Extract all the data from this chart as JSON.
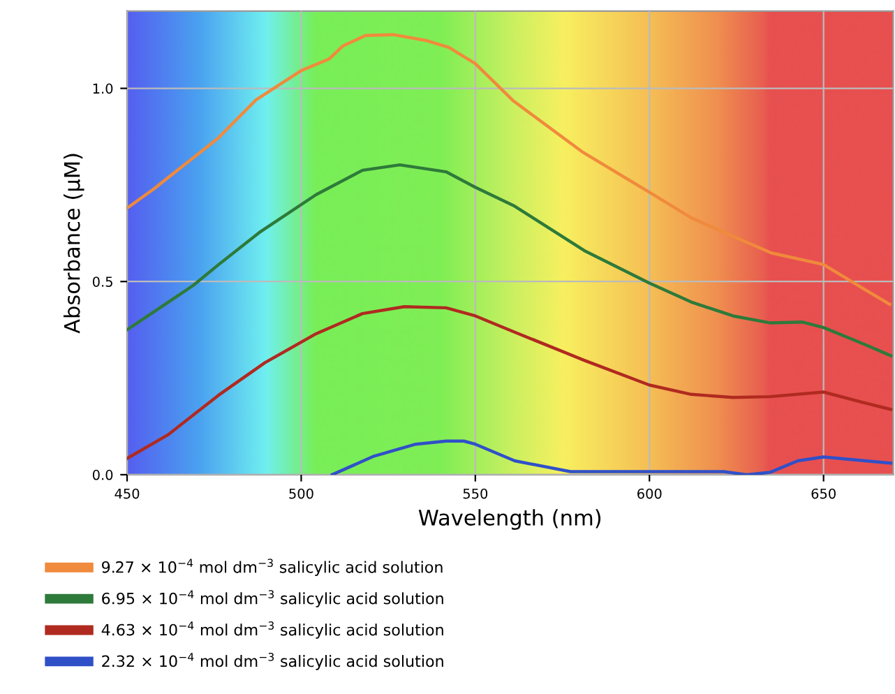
{
  "chart_data": {
    "type": "line",
    "xlabel": "Wavelength (nm)",
    "ylabel": "Absorbance (μM)",
    "xlim": [
      450,
      670
    ],
    "ylim": [
      0,
      1.2
    ],
    "xticks": [
      450,
      500,
      550,
      600,
      650
    ],
    "yticks": [
      {
        "value": 0,
        "label": "0.0"
      },
      {
        "value": 0.5,
        "label": "0.5"
      },
      {
        "value": 1.0,
        "label": "1.0"
      }
    ],
    "grid": true,
    "legend": "bottom",
    "marker": "none",
    "line_style": "solid",
    "series": [
      {
        "name": "9.27 × 10$^{−4}$ mol dm$^{−3}$ salicylic acid solution",
        "color": "#f08a3c",
        "x": [
          450,
          457.7,
          476,
          487,
          500,
          508,
          512,
          518.5,
          526.5,
          535.8,
          542.4,
          550,
          561,
          581,
          600,
          612,
          624,
          635,
          650,
          661,
          669
        ],
        "values": [
          0.69,
          0.74,
          0.87,
          0.97,
          1.046,
          1.076,
          1.11,
          1.137,
          1.139,
          1.124,
          1.106,
          1.064,
          0.967,
          0.834,
          0.731,
          0.665,
          0.617,
          0.574,
          0.544,
          0.484,
          0.441
        ]
      },
      {
        "name": "6.95 × 10$^{−4}$ mol dm$^{−3}$ salicylic acid solution",
        "color": "#2e7a3a",
        "x": [
          450,
          469,
          476.3,
          488.3,
          504.3,
          517.6,
          528.3,
          541.6,
          550,
          561.3,
          581.3,
          600,
          612,
          624,
          634.6,
          644,
          650,
          661.3,
          669.3
        ],
        "values": [
          0.375,
          0.49,
          0.544,
          0.629,
          0.725,
          0.788,
          0.802,
          0.784,
          0.744,
          0.695,
          0.58,
          0.496,
          0.447,
          0.411,
          0.393,
          0.395,
          0.381,
          0.339,
          0.308
        ]
      },
      {
        "name": "4.63 × 10$^{−4}$ mol dm$^{−3}$ salicylic acid solution",
        "color": "#b02a20",
        "x": [
          450,
          461.7,
          476.3,
          489.6,
          504.3,
          517.6,
          529.6,
          541.6,
          550,
          561.3,
          581.3,
          600,
          612,
          624,
          634.6,
          650,
          661.3,
          669.3
        ],
        "values": [
          0.042,
          0.103,
          0.206,
          0.29,
          0.365,
          0.417,
          0.435,
          0.432,
          0.411,
          0.369,
          0.296,
          0.232,
          0.208,
          0.2,
          0.202,
          0.214,
          0.187,
          0.169
        ]
      },
      {
        "name": "2.32 × 10$^{−4}$ mol dm$^{−3}$ salicylic acid solution",
        "color": "#3050c8",
        "x": [
          508.9,
          520.9,
          532.9,
          541.6,
          546.7,
          550,
          561.3,
          577.3,
          600,
          621.3,
          628,
          634.6,
          642.6,
          650,
          669.3
        ],
        "values": [
          0,
          0.048,
          0.079,
          0.087,
          0.087,
          0.079,
          0.036,
          0.008,
          0.008,
          0.008,
          0,
          0.006,
          0.036,
          0.046,
          0.03
        ]
      }
    ]
  }
}
